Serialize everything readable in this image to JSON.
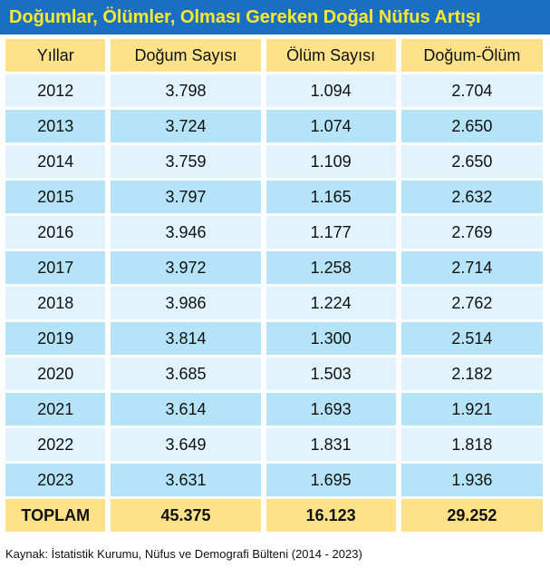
{
  "header": {
    "title": "Doğumlar, Ölümler, Olması Gereken Doğal Nüfus Artışı"
  },
  "table": {
    "columns": [
      "Yıllar",
      "Doğum Sayısı",
      "Ölüm Sayısı",
      "Doğum-Ölüm"
    ],
    "rows": [
      [
        "2012",
        "3.798",
        "1.094",
        "2.704"
      ],
      [
        "2013",
        "3.724",
        "1.074",
        "2.650"
      ],
      [
        "2014",
        "3.759",
        "1.109",
        "2.650"
      ],
      [
        "2015",
        "3.797",
        "1.165",
        "2.632"
      ],
      [
        "2016",
        "3.946",
        "1.177",
        "2.769"
      ],
      [
        "2017",
        "3.972",
        "1.258",
        "2.714"
      ],
      [
        "2018",
        "3.986",
        "1.224",
        "2.762"
      ],
      [
        "2019",
        "3.814",
        "1.300",
        "2.514"
      ],
      [
        "2020",
        "3.685",
        "1.503",
        "2.182"
      ],
      [
        "2021",
        "3.614",
        "1.693",
        "1.921"
      ],
      [
        "2022",
        "3.649",
        "1.831",
        "1.818"
      ],
      [
        "2023",
        "3.631",
        "1.695",
        "1.936"
      ]
    ],
    "total": [
      "TOPLAM",
      "45.375",
      "16.123",
      "29.252"
    ]
  },
  "source": "Kaynak: İstatistik Kurumu, Nüfus ve Demografi Bülteni (2014 - 2023)"
}
